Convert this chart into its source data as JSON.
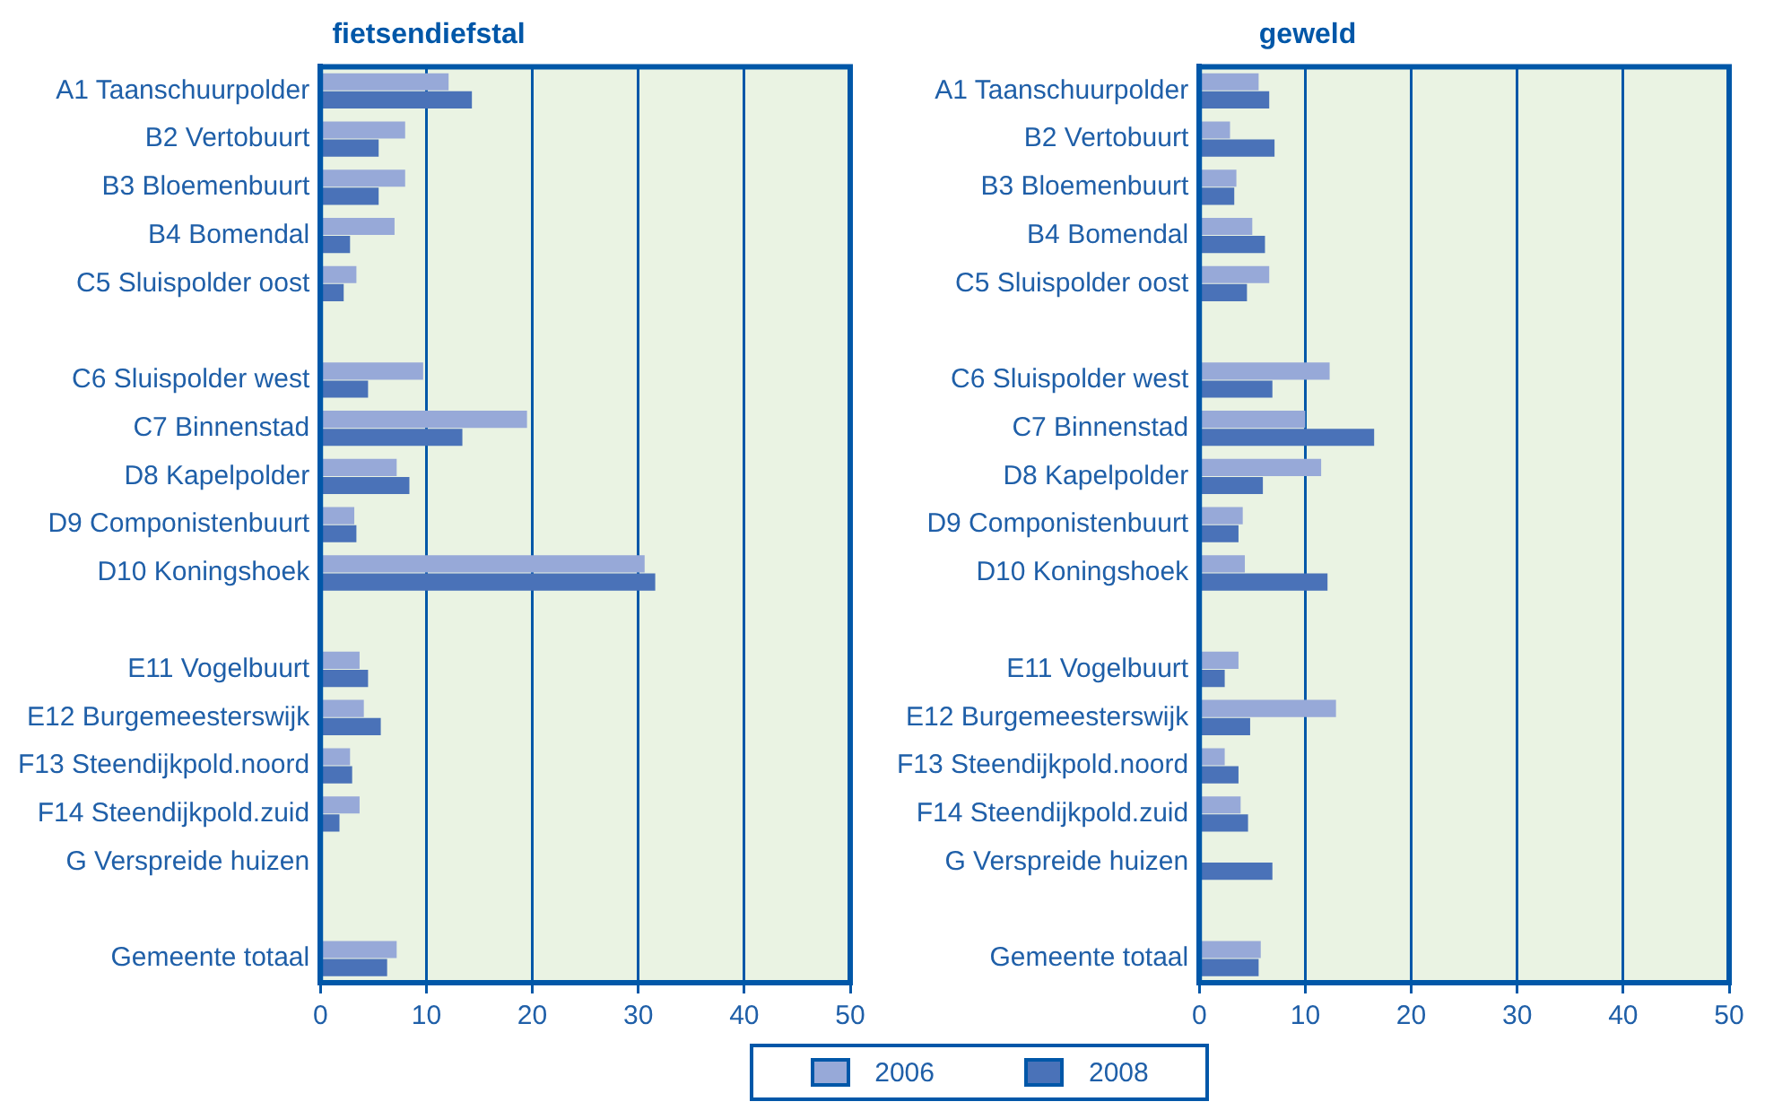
{
  "chart_data": [
    {
      "type": "bar",
      "orientation": "horizontal",
      "title": "fietsendiefstal",
      "categories": [
        "A1 Taanschuurpolder",
        "B2 Vertobuurt",
        "B3 Bloemenbuurt",
        "B4 Bomendal",
        "C5 Sluispolder oost",
        null,
        "C6 Sluispolder west",
        "C7 Binnenstad",
        "D8 Kapelpolder",
        "D9 Componistenbuurt",
        "D10 Koningshoek",
        null,
        "E11 Vogelbuurt",
        "E12 Burgemeesterswijk",
        "F13 Steendijkpold.noord",
        "F14 Steendijkpold.zuid",
        "G Verspreide huizen",
        null,
        "Gemeente totaal"
      ],
      "series": [
        {
          "name": "2006",
          "color": "#97a9d8",
          "values": [
            12.1,
            8.0,
            8.0,
            7.0,
            3.4,
            null,
            9.7,
            19.5,
            7.2,
            3.2,
            30.6,
            null,
            3.7,
            4.1,
            2.8,
            3.7,
            null,
            null,
            7.2
          ]
        },
        {
          "name": "2008",
          "color": "#4a72b8",
          "values": [
            14.3,
            5.5,
            5.5,
            2.8,
            2.2,
            null,
            4.5,
            13.4,
            8.4,
            3.4,
            31.6,
            null,
            4.5,
            5.7,
            3.0,
            1.8,
            null,
            null,
            6.3
          ]
        }
      ],
      "xlim": [
        0,
        50
      ],
      "xticks": [
        0,
        10,
        20,
        30,
        40,
        50
      ],
      "grid": "x",
      "legend": "bottom"
    },
    {
      "type": "bar",
      "orientation": "horizontal",
      "title": "geweld",
      "categories": [
        "A1 Taanschuurpolder",
        "B2 Vertobuurt",
        "B3 Bloemenbuurt",
        "B4 Bomendal",
        "C5 Sluispolder oost",
        null,
        "C6 Sluispolder west",
        "C7 Binnenstad",
        "D8 Kapelpolder",
        "D9 Componistenbuurt",
        "D10 Koningshoek",
        null,
        "E11 Vogelbuurt",
        "E12 Burgemeesterswijk",
        "F13 Steendijkpold.noord",
        "F14 Steendijkpold.zuid",
        "G Verspreide huizen",
        null,
        "Gemeente totaal"
      ],
      "series": [
        {
          "color": "#97a9d8",
          "values": [
            5.6,
            2.9,
            3.5,
            5.0,
            6.6,
            null,
            12.3,
            10.0,
            11.5,
            4.1,
            4.3,
            null,
            3.7,
            12.9,
            2.4,
            3.9,
            null,
            null,
            5.8
          ]
        },
        {
          "color": "#4a72b8",
          "values": [
            6.6,
            7.1,
            3.3,
            6.2,
            4.5,
            null,
            6.9,
            16.5,
            6.0,
            3.7,
            12.1,
            null,
            2.4,
            4.8,
            3.7,
            4.6,
            6.9,
            null,
            5.6
          ]
        }
      ],
      "xlim": [
        0,
        50
      ],
      "xticks": [
        0,
        10,
        20,
        30,
        40,
        50
      ],
      "grid": "x"
    }
  ]
}
